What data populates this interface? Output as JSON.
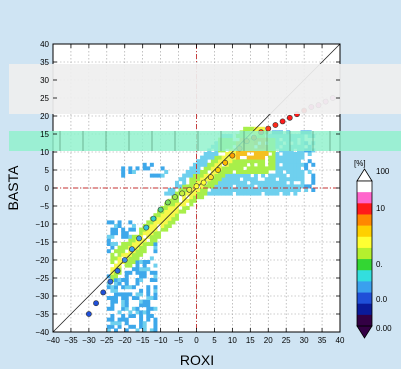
{
  "chart_data": {
    "type": "heatmap",
    "xlabel": "ROXI",
    "ylabel": "BASTA",
    "xlim": [
      -40,
      40
    ],
    "ylim": [
      -40,
      40
    ],
    "x_ticks": [
      -40,
      -35,
      -30,
      -25,
      -20,
      -15,
      -10,
      -5,
      0,
      5,
      10,
      15,
      20,
      25,
      30,
      35,
      40
    ],
    "y_ticks": [
      -40,
      -35,
      -30,
      -25,
      -20,
      -15,
      -10,
      -5,
      0,
      5,
      10,
      15,
      20,
      25,
      30,
      35,
      40
    ],
    "x_tick_labels": [
      "−40",
      "−35",
      "−30",
      "−25",
      "−20",
      "−15",
      "−10",
      "−5",
      "0",
      "5",
      "10",
      "15",
      "20",
      "25",
      "30",
      "35",
      "40"
    ],
    "y_tick_labels": [
      "−40",
      "−35",
      "−30",
      "−25",
      "−20",
      "−15",
      "−10",
      "−5",
      "0",
      "5",
      "10",
      "15",
      "20",
      "25",
      "30",
      "35",
      "40"
    ],
    "grid": true,
    "reference_lines": {
      "identity": true,
      "zero_x": true,
      "zero_y": true
    },
    "colorbar": {
      "title": "[%]",
      "labels": [
        "100",
        "10",
        "0.",
        "0.0",
        "0.00"
      ],
      "colors": [
        "#ffffff",
        "#ff66cc",
        "#ff1a1a",
        "#ff8800",
        "#ffd000",
        "#ffff33",
        "#b5f02e",
        "#33d633",
        "#33dede",
        "#3aa0ee",
        "#1f4fd8",
        "#0a1a9a",
        "#330044"
      ]
    },
    "density_colors": [
      "#3ea8ea",
      "#6fd0ee",
      "#a8ef4a",
      "#f7f74a",
      "#f4c021",
      "#f59b16"
    ],
    "mean_curve": {
      "x": [
        -30,
        -28,
        -26,
        -24,
        -22,
        -20,
        -18,
        -16,
        -14,
        -12,
        -10,
        -8,
        -6,
        -4,
        -2,
        0,
        2,
        4,
        6,
        8,
        10,
        12,
        14,
        16,
        18,
        20,
        22,
        24,
        26,
        28,
        30,
        32,
        34,
        36,
        38
      ],
      "y": [
        -35,
        -32,
        -29,
        -26,
        -23,
        -20,
        -17,
        -14,
        -11,
        -8.5,
        -6,
        -4,
        -2.5,
        -1.5,
        -0.5,
        0.5,
        1.5,
        3,
        5,
        7,
        9,
        11,
        13,
        14,
        15.5,
        16.5,
        17.5,
        18.5,
        19.5,
        20.5,
        21.5,
        22.5,
        23,
        24,
        25
      ],
      "colors": [
        "#1f4fd8",
        "#1f4fd8",
        "#1f4fd8",
        "#2a6ae0",
        "#2a6ae0",
        "#3a8ce8",
        "#3aa0ee",
        "#3aa0ee",
        "#33c2dc",
        "#33d0c8",
        "#55d68a",
        "#7be05a",
        "#a0e84a",
        "#c8f040",
        "#e8f53a",
        "#ffff33",
        "#ffff33",
        "#ffe02a",
        "#ffd000",
        "#ffb800",
        "#ffa000",
        "#ff8800",
        "#ff8800",
        "#ff6a00",
        "#ff4a10",
        "#ff3a1a",
        "#ff2a1a",
        "#ff1a1a",
        "#ff1a1a",
        "#ff1a1a",
        "#e82020",
        "#ff66cc",
        "#ff66cc",
        "#ff88dd",
        "#ff99ee"
      ]
    }
  }
}
